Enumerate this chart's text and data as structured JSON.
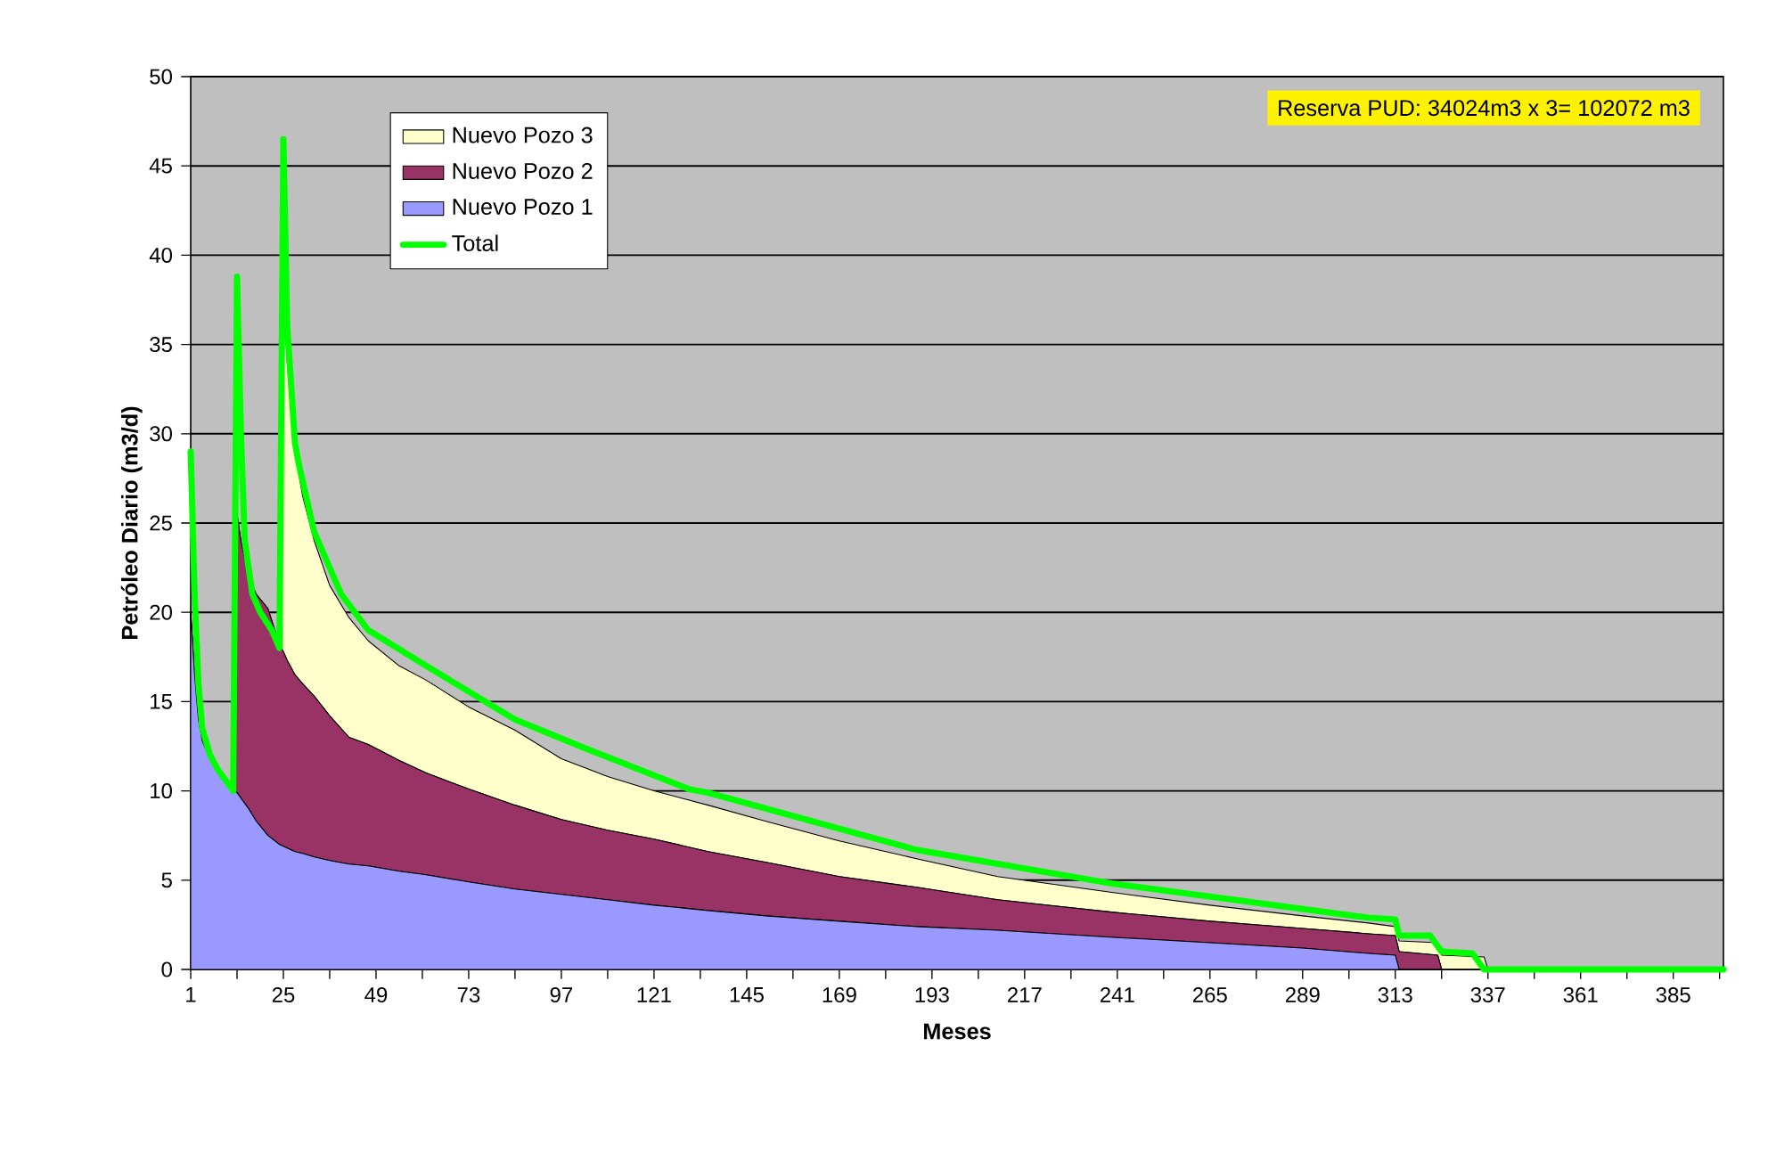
{
  "chart_data": {
    "type": "area",
    "stacked": true,
    "xlabel": "Meses",
    "ylabel": "Petróleo Diario (m3/d)",
    "annotations": [
      "Reserva PUD: 34024m3 x 3= 102072 m3"
    ],
    "x": [
      1,
      2,
      3,
      4,
      6,
      8,
      10,
      12,
      13,
      14,
      16,
      18,
      21,
      24,
      25,
      26,
      28,
      30,
      33,
      37,
      42,
      47,
      55,
      62,
      73,
      85,
      97,
      109,
      121,
      135,
      150,
      169,
      189,
      210,
      240,
      265,
      289,
      306,
      313,
      314,
      324,
      325,
      336,
      337,
      398
    ],
    "series": [
      {
        "name": "Nuevo Pozo 1",
        "color": "#9999ff",
        "values": [
          20,
          16.5,
          14,
          12.8,
          11.8,
          11.2,
          10.6,
          10.1,
          9.9,
          9.6,
          9,
          8.3,
          7.5,
          7.0,
          6.9,
          6.8,
          6.6,
          6.5,
          6.3,
          6.1,
          5.9,
          5.8,
          5.5,
          5.3,
          4.9,
          4.5,
          4.2,
          3.9,
          3.6,
          3.3,
          3.0,
          2.7,
          2.4,
          2.2,
          1.8,
          1.5,
          1.2,
          0.9,
          0.8,
          0,
          0,
          0,
          0,
          0,
          0
        ]
      },
      {
        "name": "Nuevo Pozo 2",
        "color": "#993366",
        "values": [
          0,
          0,
          0,
          0,
          0,
          0,
          0,
          0,
          15.6,
          14.4,
          13,
          12.7,
          12.7,
          11.2,
          10.9,
          10.5,
          9.9,
          9.5,
          9,
          8.1,
          7.1,
          6.8,
          6.2,
          5.7,
          5.2,
          4.7,
          4.2,
          3.9,
          3.7,
          3.3,
          3,
          2.5,
          2.2,
          1.7,
          1.4,
          1.2,
          1.1,
          1.1,
          1.1,
          1.0,
          0.8,
          0,
          0,
          0,
          0
        ]
      },
      {
        "name": "Nuevo Pozo 3",
        "color": "#ffffcc",
        "values": [
          0,
          0,
          0,
          0,
          0,
          0,
          0,
          0,
          0,
          0,
          0,
          0,
          0,
          0,
          20.2,
          16.7,
          12.5,
          10.5,
          8.7,
          7.3,
          6.7,
          5.8,
          5.3,
          5.2,
          4.6,
          4.2,
          3.4,
          3.0,
          2.7,
          2.6,
          2.3,
          2.0,
          1.6,
          1.3,
          1.1,
          0.9,
          0.7,
          0.6,
          0.5,
          0.6,
          0.7,
          0.8,
          0.7,
          0,
          0
        ]
      },
      {
        "name": "Total",
        "type": "line",
        "color": "#00ff00",
        "x": [
          1,
          2,
          3,
          4,
          6,
          8,
          11,
          12,
          13,
          14,
          15,
          17,
          19,
          22,
          24,
          25,
          26,
          28,
          29,
          33,
          40,
          47,
          62,
          85,
          103,
          130,
          135,
          189,
          240,
          306,
          313,
          314,
          322,
          325,
          333,
          336,
          398
        ],
        "values": [
          29,
          21,
          16,
          13.5,
          12,
          11.2,
          10.3,
          10,
          38.8,
          30,
          24,
          21,
          20,
          19,
          18,
          46.5,
          36,
          29.5,
          28.3,
          24.5,
          21,
          19,
          17,
          14,
          12.4,
          10.1,
          9.9,
          6.7,
          4.8,
          2.9,
          2.8,
          1.9,
          1.9,
          1.0,
          0.9,
          0,
          0
        ]
      }
    ],
    "xlim": [
      1,
      398
    ],
    "xticks": [
      1,
      {
        "value": 13,
        "label": null
      },
      25,
      {
        "value": 37,
        "label": null
      },
      49,
      {
        "value": 61,
        "label": null
      },
      73,
      {
        "value": 85,
        "label": null
      },
      97,
      {
        "value": 109,
        "label": null
      },
      121,
      {
        "value": 133,
        "label": null
      },
      145,
      {
        "value": 157,
        "label": null
      },
      169,
      {
        "value": 181,
        "label": null
      },
      193,
      {
        "value": 205,
        "label": null
      },
      217,
      {
        "value": 229,
        "label": null
      },
      241,
      {
        "value": 253,
        "label": null
      },
      265,
      {
        "value": 277,
        "label": null
      },
      289,
      {
        "value": 301,
        "label": null
      },
      313,
      {
        "value": 325,
        "label": null
      },
      337,
      {
        "value": 349,
        "label": null
      },
      361,
      {
        "value": 373,
        "label": null
      },
      385,
      {
        "value": 397,
        "label": null
      }
    ],
    "ylim": [
      0,
      50
    ],
    "yticks": [
      0,
      5,
      10,
      15,
      20,
      25,
      30,
      35,
      40,
      45,
      50
    ],
    "grid": "y",
    "legend": "top left",
    "marker": "none"
  }
}
